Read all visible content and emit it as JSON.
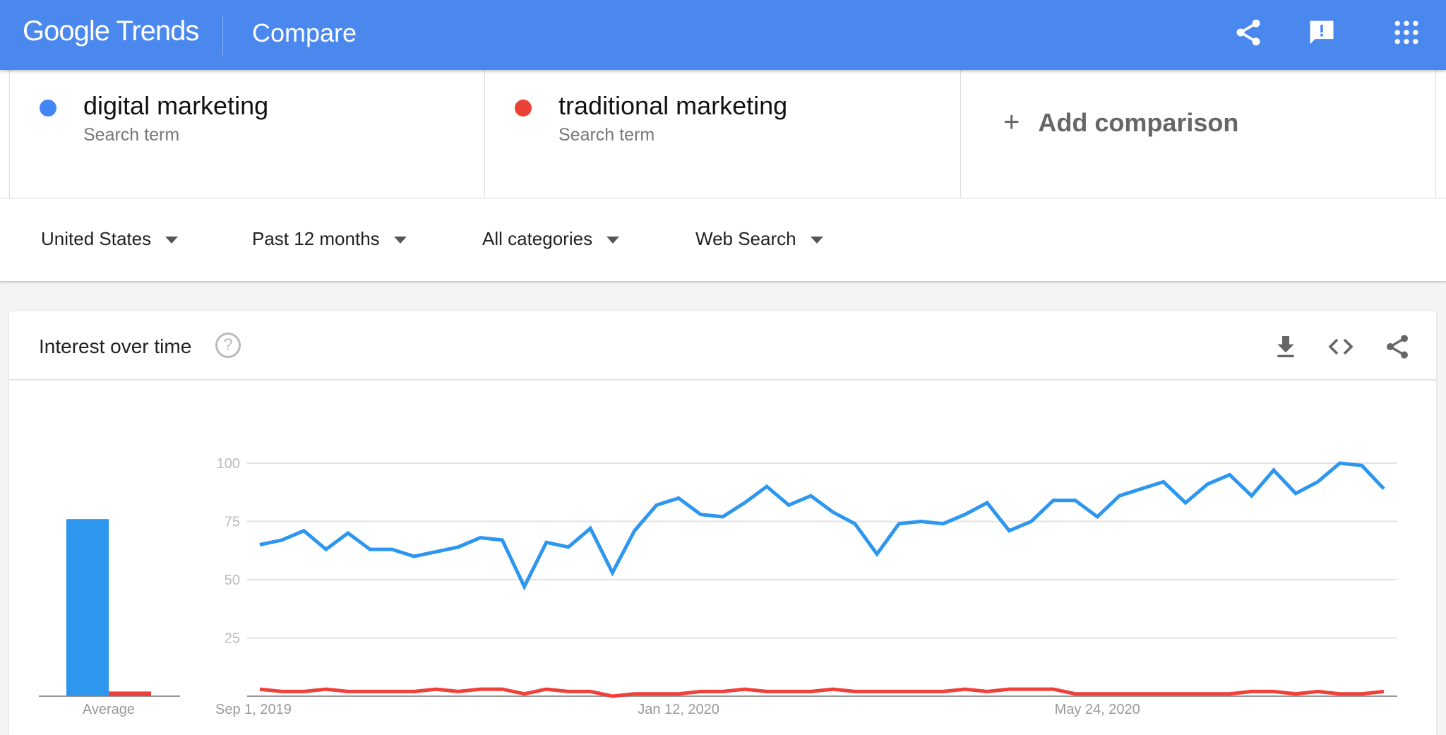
{
  "header": {
    "logo_google": "Google",
    "logo_trends": "Trends",
    "title": "Compare",
    "icons": [
      "share-icon",
      "feedback-icon",
      "apps-grid-icon"
    ],
    "color": "#4a88ee"
  },
  "terms": [
    {
      "name": "digital marketing",
      "type": "Search term",
      "color": "#4285f4"
    },
    {
      "name": "traditional marketing",
      "type": "Search term",
      "color": "#ea4335"
    }
  ],
  "add_comparison": {
    "icon": "+",
    "label": "Add comparison"
  },
  "filters": [
    {
      "label": "United States"
    },
    {
      "label": "Past 12 months"
    },
    {
      "label": "All categories"
    },
    {
      "label": "Web Search"
    }
  ],
  "panel": {
    "title": "Interest over time",
    "help": "?",
    "icons": [
      "download-icon",
      "embed-code-icon",
      "share-icon"
    ]
  },
  "chart_data": {
    "type": "line",
    "title": "Interest over time",
    "ylim": [
      0,
      100
    ],
    "y_ticks": [
      "100",
      "75",
      "50",
      "25"
    ],
    "x_tick_labels": [
      "Sep 1, 2019",
      "Jan 12, 2020",
      "May 24, 2020"
    ],
    "x_start": "2019-09-01",
    "x_interval": "weekly",
    "grid": true,
    "average": {
      "label": "Average",
      "values": [
        76,
        2
      ]
    },
    "series": [
      {
        "name": "digital marketing",
        "color": "#2d96ef",
        "values": [
          65,
          67,
          71,
          63,
          70,
          63,
          63,
          60,
          62,
          64,
          68,
          67,
          47,
          66,
          64,
          72,
          53,
          71,
          82,
          85,
          78,
          77,
          83,
          90,
          82,
          86,
          79,
          74,
          61,
          74,
          75,
          74,
          78,
          83,
          71,
          75,
          84,
          84,
          77,
          86,
          89,
          92,
          83,
          91,
          95,
          86,
          97,
          87,
          92,
          100,
          99,
          89
        ]
      },
      {
        "name": "traditional marketing",
        "color": "#f0403a",
        "values": [
          3,
          2,
          2,
          3,
          2,
          2,
          2,
          2,
          3,
          2,
          3,
          3,
          1,
          3,
          2,
          2,
          0,
          1,
          1,
          1,
          2,
          2,
          3,
          2,
          2,
          2,
          3,
          2,
          2,
          2,
          2,
          2,
          3,
          2,
          3,
          3,
          3,
          1,
          1,
          1,
          1,
          1,
          1,
          1,
          1,
          2,
          2,
          1,
          2,
          1,
          1,
          2
        ]
      }
    ]
  }
}
